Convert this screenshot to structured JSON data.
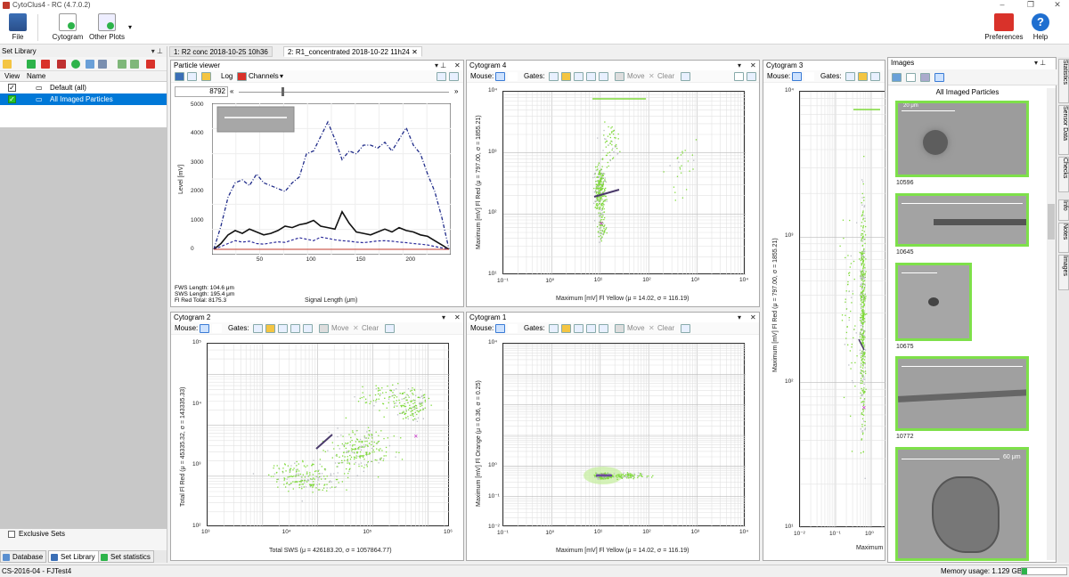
{
  "window": {
    "title": "CytoClus4 - RC (4.7.0.2)"
  },
  "ribbon": {
    "file": "File",
    "cytogram": "Cytogram",
    "other_plots": "Other Plots",
    "preferences": "Preferences",
    "help": "Help"
  },
  "set_library": {
    "title": "Set Library",
    "col_view": "View",
    "col_name": "Name",
    "rows": [
      {
        "name": "Default (all)"
      },
      {
        "name": "All Imaged Particles"
      }
    ],
    "exclusive_sets": "Exclusive Sets",
    "tabs": [
      "Database",
      "Set Library",
      "Set statistics"
    ]
  },
  "doc_tabs": [
    "1: R2 conc 2018-10-25 10h36",
    "2: R1_concentrated 2018-10-22 11h24"
  ],
  "particle_viewer": {
    "title": "Particle viewer",
    "log": "Log",
    "channels": "Channels",
    "particle_id": "8792",
    "ylabel": "Level [mV]",
    "xlabel": "Signal Length (μm)",
    "yticks": [
      "5000",
      "4000",
      "3000",
      "2000",
      "1000",
      "0"
    ],
    "xticks": [
      "50",
      "100",
      "150",
      "200"
    ],
    "info": [
      "FWS Length: 104.6 μm",
      "SWS Length: 195.4 μm",
      "Fl Red Total: 8175.3"
    ]
  },
  "toolbar": {
    "mouse": "Mouse:",
    "gates": "Gates:",
    "move": "Move",
    "clear": "Clear"
  },
  "cyto4": {
    "title": "Cytogram 4",
    "xlabel": "Maximum [mV] Fl Yellow (μ = 14.02, σ = 116.19)",
    "ylabel": "Maximum [mV] Fl Red (μ = 797.00, σ = 1855.21)",
    "xticks": [
      "10⁻¹",
      "10⁰",
      "10¹",
      "10²",
      "10³",
      "10⁴"
    ],
    "yticks": [
      "10⁴",
      "10³",
      "10²",
      "10¹"
    ]
  },
  "cyto3": {
    "title": "Cytogram 3",
    "xlabel": "Maximum",
    "ylabel": "Maximum [mV] Fl Red (μ = 797.00, σ = 1855.21)",
    "xticks": [
      "10⁻²",
      "10⁻¹",
      "10⁰"
    ],
    "yticks": [
      "10⁴",
      "10³",
      "10²",
      "10¹"
    ]
  },
  "cyto2": {
    "title": "Cytogram 2",
    "xlabel": "Total  SWS (μ = 426183.20, σ = 1057864.77)",
    "ylabel": "Total Fl Red (μ = 45335.32, σ = 143335.33)",
    "xticks": [
      "10³",
      "10⁴",
      "10⁵",
      "10⁶"
    ],
    "yticks": [
      "10⁵",
      "10⁴",
      "10³",
      "10²"
    ]
  },
  "cyto1": {
    "title": "Cytogram 1",
    "xlabel": "Maximum [mV] Fl Yellow (μ = 14.02, σ = 116.19)",
    "ylabel": "Maximum [mV] Fl Orange (μ = 0.36, σ = 0.25)",
    "xticks": [
      "10⁻¹",
      "10⁰",
      "10¹",
      "10²",
      "10³",
      "10⁴"
    ],
    "yticks": [
      "10⁰",
      "10⁻¹",
      "10⁻²"
    ],
    "ytop": "10⁴"
  },
  "images": {
    "title": "Images",
    "header": "All Imaged Particles",
    "items": [
      {
        "id": "10596",
        "scale": "20 μm"
      },
      {
        "id": "10645",
        "scale": ""
      },
      {
        "id": "10675",
        "scale": ""
      },
      {
        "id": "10772",
        "scale": ""
      },
      {
        "id": "",
        "scale": "60 μm"
      }
    ]
  },
  "side_tabs": [
    "Statistics",
    "Sensor Data",
    "Checks",
    "Info",
    "Notes",
    "Images"
  ],
  "status": {
    "left": "CS-2016-04 - FJTest4",
    "memory": "Memory usage: 1.129 GB"
  }
}
